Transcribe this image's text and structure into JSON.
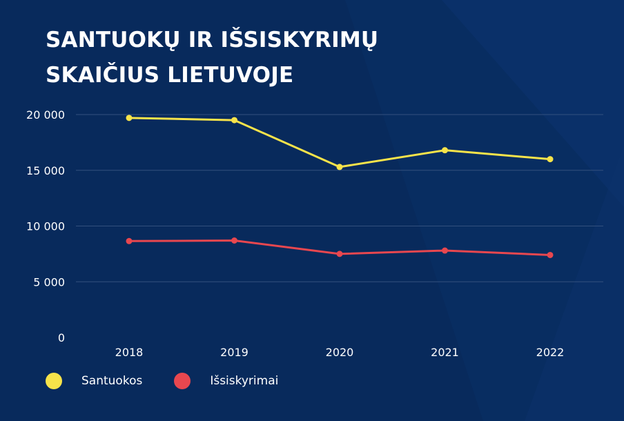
{
  "chart_data": {
    "type": "line",
    "title": "SANTUOKŲ IR IŠSISKYRIMŲ",
    "title_line2": "SKAIČIUS LIETUVOJE",
    "categories": [
      "2018",
      "2019",
      "2020",
      "2021",
      "2022"
    ],
    "series": [
      {
        "name": "Santuokos",
        "values": [
          19700,
          19500,
          15300,
          16800,
          16000
        ],
        "color": "#f7e34a"
      },
      {
        "name": "Išsiskyrimai",
        "values": [
          8650,
          8700,
          7500,
          7800,
          7400
        ],
        "color": "#e8474f"
      }
    ],
    "y_ticks": [
      {
        "value": 0,
        "label": "0"
      },
      {
        "value": 5000,
        "label": "5 000"
      },
      {
        "value": 10000,
        "label": "10 000"
      },
      {
        "value": 15000,
        "label": "15 000"
      },
      {
        "value": 20000,
        "label": "20 000"
      }
    ],
    "ylim": [
      0,
      20000
    ],
    "grid": true,
    "legend_position": "bottom-left"
  },
  "colors": {
    "background": "#082a5c",
    "gridline": "#33507e",
    "text": "#ffffff"
  }
}
